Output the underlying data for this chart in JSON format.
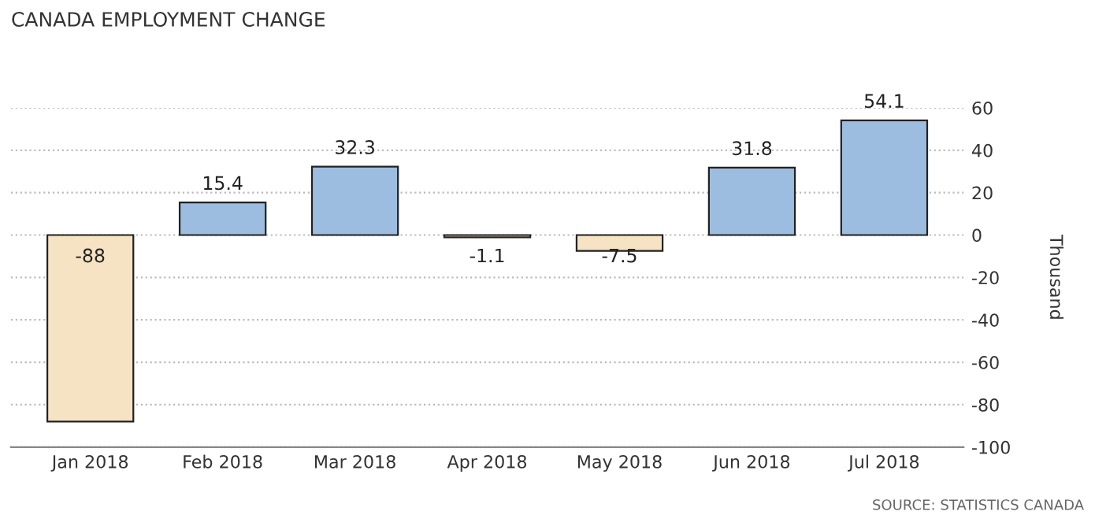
{
  "chart_data": {
    "type": "bar",
    "title": "CANADA EMPLOYMENT CHANGE",
    "ylabel": "Thousand",
    "categories": [
      "Jan 2018",
      "Feb 2018",
      "Mar 2018",
      "Apr 2018",
      "May 2018",
      "Jun 2018",
      "Jul 2018"
    ],
    "values": [
      -88,
      15.4,
      32.3,
      -1.1,
      -7.5,
      31.8,
      54.1
    ],
    "colors": [
      "#f6e3c3",
      "#9dbde0",
      "#9dbde0",
      "#f6e3c3",
      "#f6e3c3",
      "#9dbde0",
      "#9dbde0"
    ],
    "ylim": [
      -100,
      60
    ],
    "yticks": [
      -100,
      -80,
      -60,
      -40,
      -20,
      0,
      20,
      40,
      60
    ],
    "grid": "y",
    "legend": false,
    "data_labels": true,
    "annotations": [
      "SOURCE: STATISTICS CANADA"
    ]
  }
}
